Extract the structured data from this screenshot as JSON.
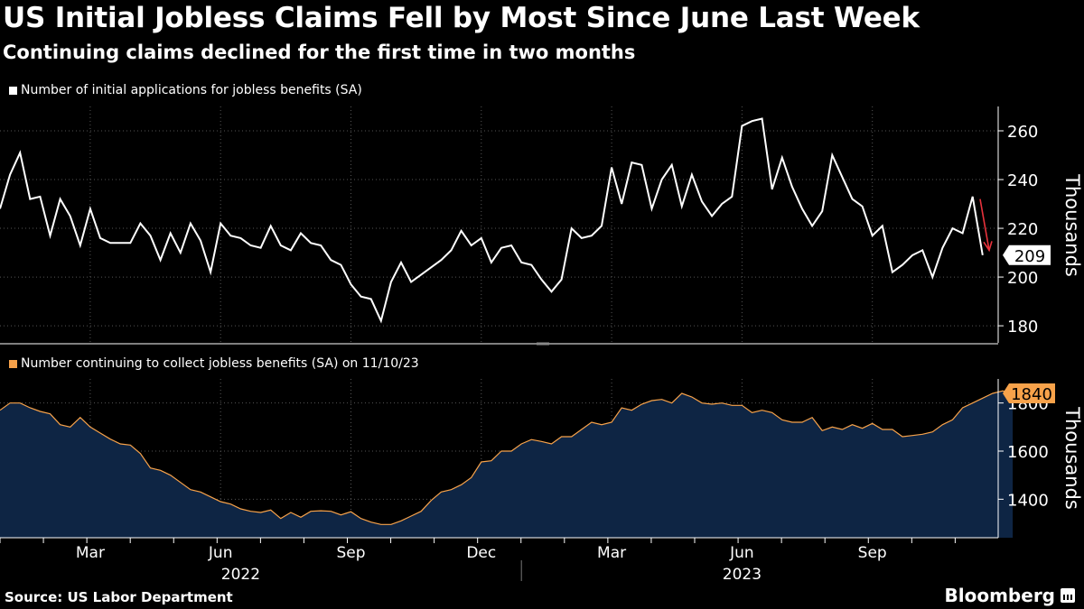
{
  "title": "US Initial Jobless Claims Fell by Most Since June Last Week",
  "subtitle": "Continuing claims declined for the first time in two months",
  "source": "Source: US Labor Department",
  "brand": "Bloomberg",
  "chart_data": [
    {
      "type": "line",
      "legend": "Number of initial applications for jobless benefits (SA)",
      "ylabel": "Thousands",
      "ylim": [
        173,
        270
      ],
      "yticks": [
        180,
        200,
        220,
        240,
        260
      ],
      "last_value_label": "209",
      "color": "#ffffff",
      "annotation_arrow_color": "#e8323c",
      "grid": true,
      "values": [
        228,
        242,
        251,
        232,
        233,
        217,
        232,
        225,
        213,
        228,
        216,
        214,
        214,
        214,
        222,
        217,
        207,
        218,
        210,
        222,
        215,
        202,
        222,
        217,
        216,
        213,
        212,
        221,
        213,
        211,
        218,
        214,
        213,
        207,
        205,
        197,
        192,
        191,
        182,
        198,
        206,
        198,
        201,
        204,
        207,
        211,
        219,
        213,
        216,
        206,
        212,
        213,
        206,
        205,
        199,
        194,
        199,
        220,
        216,
        217,
        221,
        245,
        230,
        247,
        246,
        228,
        240,
        246,
        229,
        242,
        231,
        225,
        230,
        233,
        262,
        264,
        265,
        236,
        249,
        237,
        228,
        221,
        227,
        250,
        241,
        232,
        229,
        217,
        221,
        202,
        205,
        209,
        211,
        200,
        212,
        220,
        218,
        233,
        209
      ]
    },
    {
      "type": "area",
      "legend": "Number continuing to collect jobless benefits (SA) on 11/10/23",
      "ylabel": "Thousands",
      "ylim": [
        1240,
        1900
      ],
      "yticks": [
        1400,
        1600,
        1800
      ],
      "last_value_label": "1840",
      "line_color": "#f7a24a",
      "fill_color": "#0e2544",
      "grid": true,
      "values": [
        1770,
        1800,
        1800,
        1780,
        1765,
        1755,
        1710,
        1700,
        1740,
        1700,
        1675,
        1650,
        1630,
        1625,
        1590,
        1530,
        1520,
        1500,
        1470,
        1440,
        1430,
        1410,
        1390,
        1380,
        1360,
        1350,
        1345,
        1355,
        1320,
        1345,
        1325,
        1350,
        1352,
        1350,
        1335,
        1348,
        1320,
        1305,
        1295,
        1295,
        1310,
        1330,
        1350,
        1395,
        1430,
        1440,
        1460,
        1490,
        1555,
        1560,
        1600,
        1600,
        1630,
        1648,
        1640,
        1630,
        1660,
        1660,
        1690,
        1720,
        1710,
        1720,
        1780,
        1770,
        1795,
        1810,
        1815,
        1800,
        1840,
        1825,
        1800,
        1795,
        1800,
        1790,
        1790,
        1760,
        1770,
        1760,
        1730,
        1720,
        1720,
        1740,
        1685,
        1700,
        1690,
        1710,
        1695,
        1715,
        1690,
        1690,
        1660,
        1665,
        1670,
        1680,
        1710,
        1730,
        1780,
        1800,
        1820,
        1840,
        1850,
        1840
      ]
    }
  ],
  "x_axis": {
    "month_ticks": [
      {
        "label": "Mar",
        "index": 9
      },
      {
        "label": "Jun",
        "index": 22
      },
      {
        "label": "Sep",
        "index": 35
      },
      {
        "label": "Dec",
        "index": 48
      },
      {
        "label": "Mar",
        "index": 61
      },
      {
        "label": "Jun",
        "index": 74
      },
      {
        "label": "Sep",
        "index": 87
      }
    ],
    "years": [
      {
        "label": "2022",
        "index": 24
      },
      {
        "label": "2023",
        "index": 74
      }
    ],
    "year_divider_index": 52
  }
}
